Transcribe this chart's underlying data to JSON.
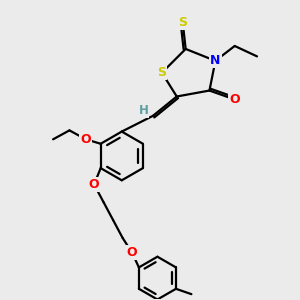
{
  "bg_color": "#ebebeb",
  "atom_colors": {
    "S": "#cccc00",
    "N": "#0000ff",
    "O": "#ff0000",
    "H": "#5f9ea0",
    "C": "#000000"
  },
  "bond_color": "#000000",
  "bond_width": 1.6,
  "figsize": [
    3.0,
    3.0
  ],
  "dpi": 100
}
